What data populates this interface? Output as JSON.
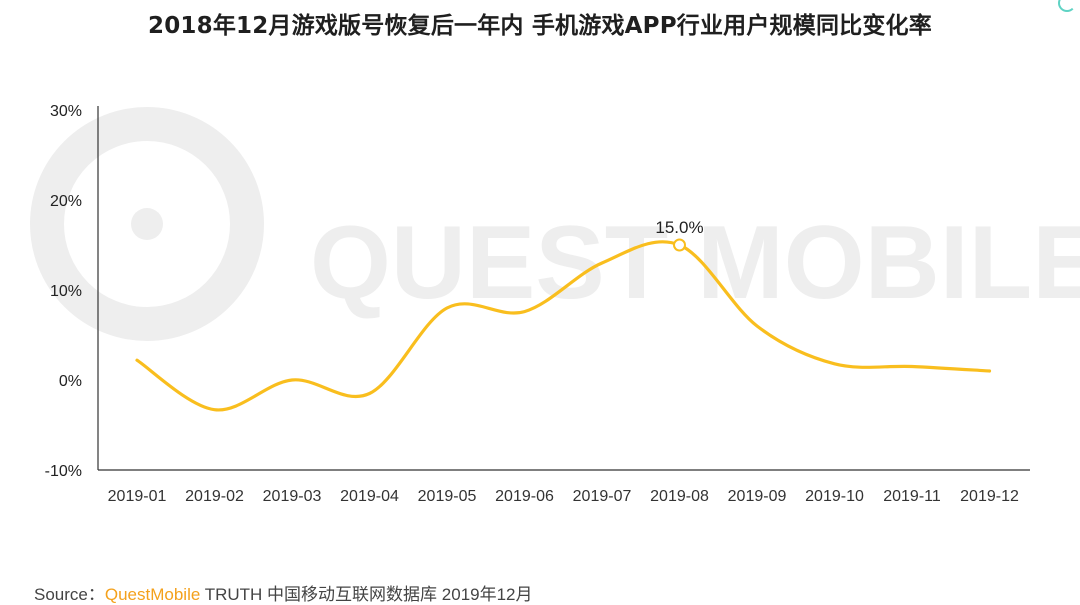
{
  "title": "2018年12月游戏版号恢复后一年内 手机游戏APP行业用户规模同比变化率",
  "watermark": "QUEST MOBILE",
  "source": {
    "prefix": "Source：",
    "brand": "QuestMobile",
    "rest": "TRUTH 中国移动互联网数据库 2019年12月"
  },
  "colors": {
    "line": "#f9be1e",
    "axis": "#333333",
    "watermark": "#eeeeee",
    "brand": "#f4a11c"
  },
  "chart_data": {
    "type": "line",
    "title": "2018年12月游戏版号恢复后一年内 手机游戏APP行业用户规模同比变化率",
    "xlabel": "",
    "ylabel": "",
    "categories": [
      "2019-01",
      "2019-02",
      "2019-03",
      "2019-04",
      "2019-05",
      "2019-06",
      "2019-07",
      "2019-08",
      "2019-09",
      "2019-10",
      "2019-11",
      "2019-12"
    ],
    "series": [
      {
        "values": [
          2.2,
          -3.3,
          0.0,
          -1.5,
          8.0,
          7.6,
          13.0,
          15.0,
          6.0,
          1.8,
          1.5,
          1.0
        ]
      }
    ],
    "ylim": [
      -10,
      30
    ],
    "yticks": [
      "-10%",
      "0%",
      "10%",
      "20%",
      "30%"
    ],
    "annotations": [
      {
        "category": "2019-08",
        "text": "15.0%"
      }
    ],
    "grid": false,
    "legend": "none",
    "smooth": true
  }
}
